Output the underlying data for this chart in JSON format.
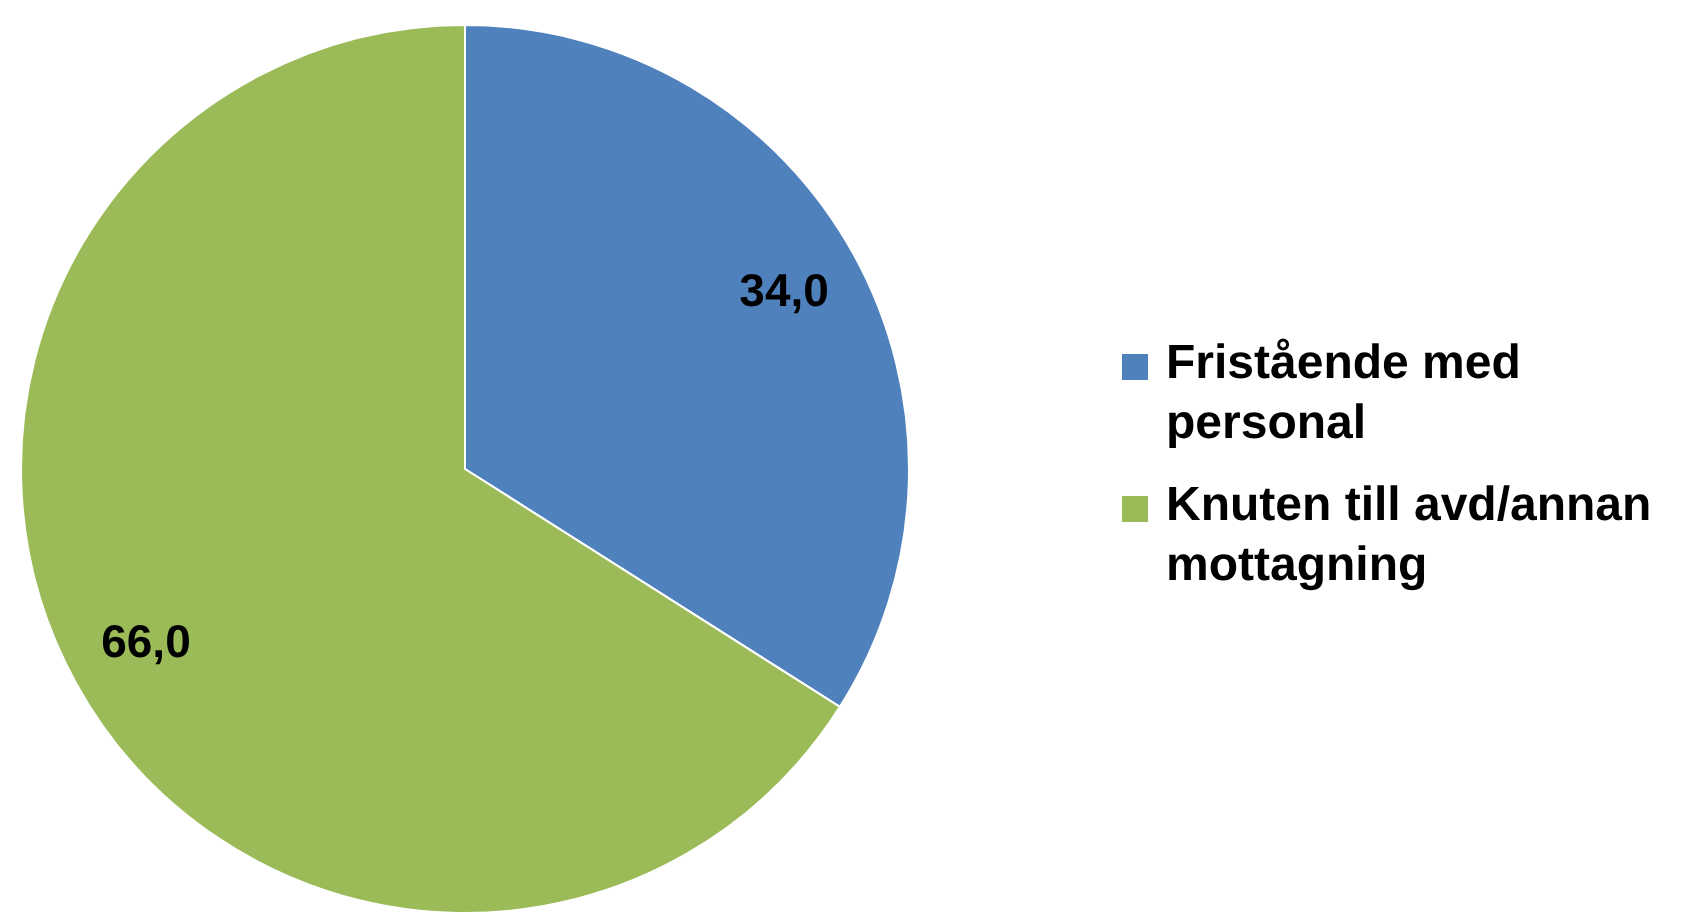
{
  "chart_data": {
    "type": "pie",
    "categories": [
      "Fristående med personal",
      "Knuten till avd/annan mottagning"
    ],
    "values": [
      34.0,
      66.0
    ],
    "colors": [
      "#4f81bd",
      "#9bbb59"
    ],
    "value_labels": [
      "34,0",
      "66,0"
    ],
    "legend": "right"
  }
}
